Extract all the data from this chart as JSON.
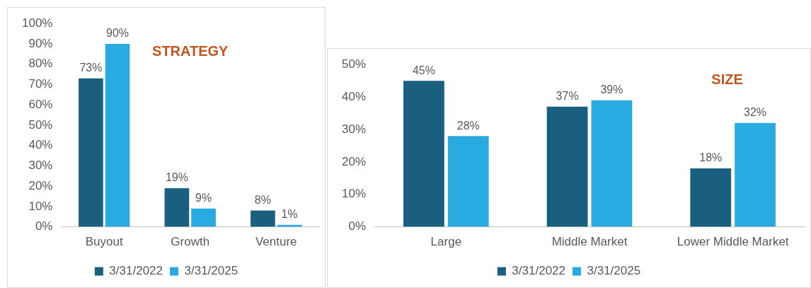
{
  "chart_data": [
    {
      "type": "bar",
      "title": "STRATEGY",
      "categories": [
        "Buyout",
        "Growth",
        "Venture"
      ],
      "series": [
        {
          "name": "3/31/2022",
          "color": "#1a5f80",
          "values": [
            73,
            19,
            8
          ],
          "value_labels": [
            "73%",
            "19%",
            "8%"
          ]
        },
        {
          "name": "3/31/2025",
          "color": "#29abe2",
          "values": [
            90,
            9,
            1
          ],
          "value_labels": [
            "90%",
            "9%",
            "1%"
          ]
        }
      ],
      "ylim": [
        0,
        100
      ],
      "yticks": [
        {
          "value": 0,
          "label": "0%"
        },
        {
          "value": 10,
          "label": "10%"
        },
        {
          "value": 20,
          "label": "20%"
        },
        {
          "value": 30,
          "label": "30%"
        },
        {
          "value": 40,
          "label": "40%"
        },
        {
          "value": 50,
          "label": "50%"
        },
        {
          "value": 60,
          "label": "60%"
        },
        {
          "value": 70,
          "label": "70%"
        },
        {
          "value": 80,
          "label": "80%"
        },
        {
          "value": 90,
          "label": "90%"
        },
        {
          "value": 100,
          "label": "100%"
        }
      ],
      "grid": false,
      "legend": "bottom"
    },
    {
      "type": "bar",
      "title": "SIZE",
      "categories": [
        "Large",
        "Middle Market",
        "Lower Middle Market"
      ],
      "series": [
        {
          "name": "3/31/2022",
          "color": "#1a5f80",
          "values": [
            45,
            37,
            18
          ],
          "value_labels": [
            "45%",
            "37%",
            "18%"
          ]
        },
        {
          "name": "3/31/2025",
          "color": "#29abe2",
          "values": [
            28,
            39,
            32
          ],
          "value_labels": [
            "28%",
            "39%",
            "32%"
          ]
        }
      ],
      "ylim": [
        0,
        50
      ],
      "yticks": [
        {
          "value": 0,
          "label": "0%"
        },
        {
          "value": 10,
          "label": "10%"
        },
        {
          "value": 20,
          "label": "20%"
        },
        {
          "value": 30,
          "label": "30%"
        },
        {
          "value": 40,
          "label": "40%"
        },
        {
          "value": 50,
          "label": "50%"
        }
      ],
      "grid": false,
      "legend": "bottom"
    }
  ]
}
